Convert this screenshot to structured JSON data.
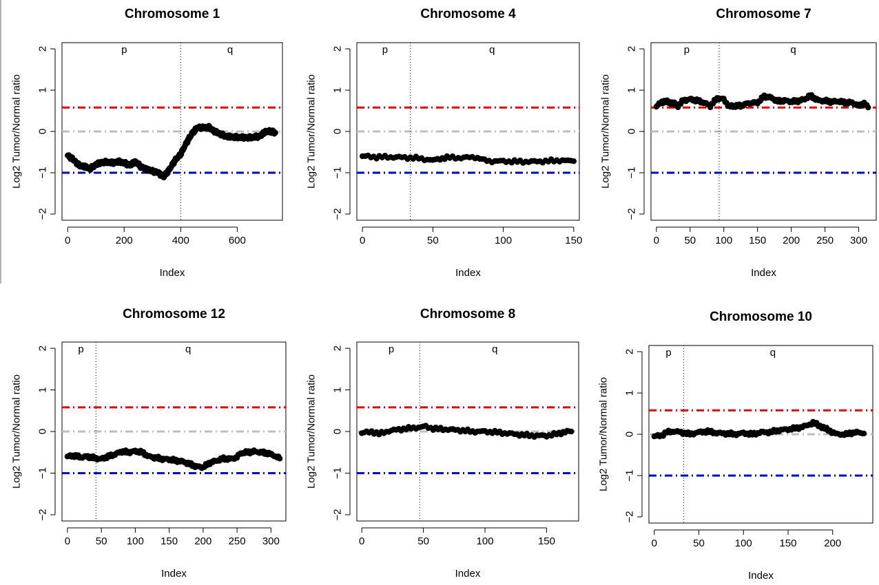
{
  "colors": {
    "upper_threshold": "#e00000",
    "baseline": "#bdbdbd",
    "lower_threshold": "#0000cc",
    "points": "#000000"
  },
  "chart_data": [
    {
      "type": "scatter",
      "title": "Chromosome 1",
      "xlabel": "Index",
      "ylabel": "Log2 Tumor/Normal ratio",
      "xlim": [
        -20,
        760
      ],
      "ylim": [
        -2.15,
        2.15
      ],
      "xticks": [
        0,
        200,
        400,
        600
      ],
      "yticks": [
        -2,
        -1,
        0,
        1,
        2
      ],
      "reference_lines": {
        "upper": 0.58,
        "baseline": 0,
        "lower": -1
      },
      "centromere_x": 400,
      "arm_labels": [
        {
          "text": "p",
          "x": 200
        },
        {
          "text": "q",
          "x": 575
        }
      ],
      "series": [
        {
          "profile": [
            [
              0,
              -0.58
            ],
            [
              20,
              -0.68
            ],
            [
              40,
              -0.82
            ],
            [
              60,
              -0.85
            ],
            [
              80,
              -0.9
            ],
            [
              100,
              -0.8
            ],
            [
              120,
              -0.75
            ],
            [
              140,
              -0.74
            ],
            [
              160,
              -0.76
            ],
            [
              180,
              -0.73
            ],
            [
              200,
              -0.76
            ],
            [
              220,
              -0.82
            ],
            [
              240,
              -0.73
            ],
            [
              260,
              -0.86
            ],
            [
              280,
              -0.92
            ],
            [
              300,
              -0.96
            ],
            [
              320,
              -1.0
            ],
            [
              340,
              -1.1
            ],
            [
              360,
              -0.92
            ],
            [
              380,
              -0.7
            ],
            [
              400,
              -0.55
            ],
            [
              420,
              -0.28
            ],
            [
              440,
              -0.05
            ],
            [
              460,
              0.1
            ],
            [
              480,
              0.09
            ],
            [
              500,
              0.1
            ],
            [
              520,
              0.0
            ],
            [
              540,
              -0.06
            ],
            [
              560,
              -0.12
            ],
            [
              600,
              -0.14
            ],
            [
              640,
              -0.15
            ],
            [
              680,
              -0.12
            ],
            [
              700,
              0.0
            ],
            [
              720,
              0.0
            ],
            [
              735,
              -0.03
            ]
          ]
        }
      ]
    },
    {
      "type": "scatter",
      "title": "Chromosome 4",
      "xlabel": "Index",
      "ylabel": "Log2 Tumor/Normal ratio",
      "xlim": [
        -4,
        154
      ],
      "ylim": [
        -2.15,
        2.15
      ],
      "xticks": [
        0,
        50,
        100,
        150
      ],
      "yticks": [
        -2,
        -1,
        0,
        1,
        2
      ],
      "reference_lines": {
        "upper": 0.58,
        "baseline": 0,
        "lower": -1
      },
      "centromere_x": 34,
      "arm_labels": [
        {
          "text": "p",
          "x": 16
        },
        {
          "text": "q",
          "x": 92
        }
      ],
      "series": [
        {
          "profile": [
            [
              0,
              -0.6
            ],
            [
              10,
              -0.62
            ],
            [
              20,
              -0.62
            ],
            [
              30,
              -0.63
            ],
            [
              40,
              -0.65
            ],
            [
              50,
              -0.7
            ],
            [
              55,
              -0.66
            ],
            [
              60,
              -0.63
            ],
            [
              70,
              -0.64
            ],
            [
              80,
              -0.62
            ],
            [
              85,
              -0.68
            ],
            [
              90,
              -0.72
            ],
            [
              100,
              -0.72
            ],
            [
              110,
              -0.73
            ],
            [
              120,
              -0.73
            ],
            [
              130,
              -0.72
            ],
            [
              140,
              -0.7
            ],
            [
              150,
              -0.72
            ]
          ]
        }
      ]
    },
    {
      "type": "scatter",
      "title": "Chromosome 7",
      "xlabel": "Index",
      "ylabel": "Log2 Tumor/Normal ratio",
      "xlim": [
        -8,
        326
      ],
      "ylim": [
        -2.15,
        2.15
      ],
      "xticks": [
        0,
        50,
        100,
        150,
        200,
        250,
        300
      ],
      "yticks": [
        -2,
        -1,
        0,
        1,
        2
      ],
      "reference_lines": {
        "upper": 0.58,
        "baseline": 0,
        "lower": -1
      },
      "centromere_x": 93,
      "arm_labels": [
        {
          "text": "p",
          "x": 45
        },
        {
          "text": "q",
          "x": 203
        }
      ],
      "series": [
        {
          "profile": [
            [
              0,
              0.6
            ],
            [
              8,
              0.72
            ],
            [
              16,
              0.72
            ],
            [
              25,
              0.68
            ],
            [
              32,
              0.62
            ],
            [
              40,
              0.75
            ],
            [
              50,
              0.78
            ],
            [
              60,
              0.75
            ],
            [
              70,
              0.7
            ],
            [
              80,
              0.62
            ],
            [
              90,
              0.8
            ],
            [
              100,
              0.78
            ],
            [
              108,
              0.6
            ],
            [
              115,
              0.62
            ],
            [
              125,
              0.62
            ],
            [
              135,
              0.68
            ],
            [
              150,
              0.7
            ],
            [
              160,
              0.85
            ],
            [
              170,
              0.82
            ],
            [
              180,
              0.73
            ],
            [
              190,
              0.75
            ],
            [
              200,
              0.72
            ],
            [
              210,
              0.74
            ],
            [
              220,
              0.78
            ],
            [
              228,
              0.87
            ],
            [
              240,
              0.75
            ],
            [
              250,
              0.74
            ],
            [
              260,
              0.72
            ],
            [
              270,
              0.73
            ],
            [
              280,
              0.7
            ],
            [
              290,
              0.7
            ],
            [
              300,
              0.62
            ],
            [
              308,
              0.68
            ],
            [
              314,
              0.58
            ]
          ]
        }
      ]
    },
    {
      "type": "scatter",
      "title": "Chromosome 12",
      "xlabel": "Index",
      "ylabel": "Log2 Tumor/Normal ratio",
      "xlim": [
        -8,
        322
      ],
      "ylim": [
        -2.15,
        2.15
      ],
      "xticks": [
        0,
        50,
        100,
        150,
        200,
        250,
        300
      ],
      "yticks": [
        -2,
        -1,
        0,
        1,
        2
      ],
      "reference_lines": {
        "upper": 0.58,
        "baseline": 0,
        "lower": -1
      },
      "centromere_x": 42,
      "arm_labels": [
        {
          "text": "p",
          "x": 20
        },
        {
          "text": "q",
          "x": 178
        }
      ],
      "series": [
        {
          "profile": [
            [
              0,
              -0.6
            ],
            [
              10,
              -0.58
            ],
            [
              20,
              -0.62
            ],
            [
              30,
              -0.6
            ],
            [
              40,
              -0.64
            ],
            [
              50,
              -0.66
            ],
            [
              60,
              -0.6
            ],
            [
              70,
              -0.55
            ],
            [
              80,
              -0.48
            ],
            [
              90,
              -0.5
            ],
            [
              100,
              -0.47
            ],
            [
              110,
              -0.5
            ],
            [
              120,
              -0.6
            ],
            [
              130,
              -0.63
            ],
            [
              140,
              -0.66
            ],
            [
              150,
              -0.67
            ],
            [
              160,
              -0.7
            ],
            [
              170,
              -0.72
            ],
            [
              180,
              -0.78
            ],
            [
              190,
              -0.84
            ],
            [
              200,
              -0.86
            ],
            [
              210,
              -0.75
            ],
            [
              220,
              -0.7
            ],
            [
              230,
              -0.65
            ],
            [
              240,
              -0.66
            ],
            [
              250,
              -0.62
            ],
            [
              255,
              -0.52
            ],
            [
              265,
              -0.5
            ],
            [
              275,
              -0.48
            ],
            [
              285,
              -0.5
            ],
            [
              295,
              -0.52
            ],
            [
              305,
              -0.58
            ],
            [
              313,
              -0.65
            ]
          ]
        }
      ]
    },
    {
      "type": "scatter",
      "title": "Chromosome 8",
      "xlabel": "Index",
      "ylabel": "Log2 Tumor/Normal ratio",
      "xlim": [
        -4,
        176
      ],
      "ylim": [
        -2.15,
        2.15
      ],
      "xticks": [
        0,
        50,
        100,
        150
      ],
      "yticks": [
        -2,
        -1,
        0,
        1,
        2
      ],
      "reference_lines": {
        "upper": 0.58,
        "baseline": 0,
        "lower": -1
      },
      "centromere_x": 47,
      "arm_labels": [
        {
          "text": "p",
          "x": 24
        },
        {
          "text": "q",
          "x": 108
        }
      ],
      "series": [
        {
          "profile": [
            [
              0,
              -0.04
            ],
            [
              8,
              0.0
            ],
            [
              14,
              -0.06
            ],
            [
              20,
              0.0
            ],
            [
              30,
              0.05
            ],
            [
              40,
              0.08
            ],
            [
              46,
              0.1
            ],
            [
              52,
              0.12
            ],
            [
              58,
              0.07
            ],
            [
              70,
              0.05
            ],
            [
              80,
              0.03
            ],
            [
              90,
              0.0
            ],
            [
              100,
              0.0
            ],
            [
              110,
              -0.02
            ],
            [
              120,
              -0.05
            ],
            [
              130,
              -0.08
            ],
            [
              140,
              -0.1
            ],
            [
              150,
              -0.1
            ],
            [
              160,
              -0.05
            ],
            [
              165,
              0.0
            ],
            [
              170,
              0.0
            ]
          ]
        }
      ]
    },
    {
      "type": "scatter",
      "title": "Chromosome 10",
      "xlabel": "Index",
      "ylabel": "Log2 Tumor/Normal ratio",
      "xlim": [
        -6,
        245
      ],
      "ylim": [
        -2.15,
        2.15
      ],
      "xticks": [
        0,
        50,
        100,
        150,
        200
      ],
      "yticks": [
        -2,
        -1,
        0,
        1,
        2
      ],
      "reference_lines": {
        "upper": 0.58,
        "baseline": 0,
        "lower": -1
      },
      "centromere_x": 33,
      "arm_labels": [
        {
          "text": "p",
          "x": 16
        },
        {
          "text": "q",
          "x": 133
        }
      ],
      "series": [
        {
          "profile": [
            [
              0,
              -0.05
            ],
            [
              8,
              -0.03
            ],
            [
              14,
              0.05
            ],
            [
              22,
              0.07
            ],
            [
              30,
              0.05
            ],
            [
              40,
              0.0
            ],
            [
              50,
              0.05
            ],
            [
              60,
              0.07
            ],
            [
              70,
              0.03
            ],
            [
              80,
              0.02
            ],
            [
              90,
              0.0
            ],
            [
              100,
              0.03
            ],
            [
              110,
              0.0
            ],
            [
              120,
              0.05
            ],
            [
              130,
              0.05
            ],
            [
              140,
              0.1
            ],
            [
              150,
              0.12
            ],
            [
              160,
              0.15
            ],
            [
              170,
              0.2
            ],
            [
              178,
              0.28
            ],
            [
              186,
              0.2
            ],
            [
              195,
              0.1
            ],
            [
              205,
              0.0
            ],
            [
              215,
              0.0
            ],
            [
              225,
              0.05
            ],
            [
              235,
              0.02
            ]
          ]
        }
      ]
    }
  ]
}
